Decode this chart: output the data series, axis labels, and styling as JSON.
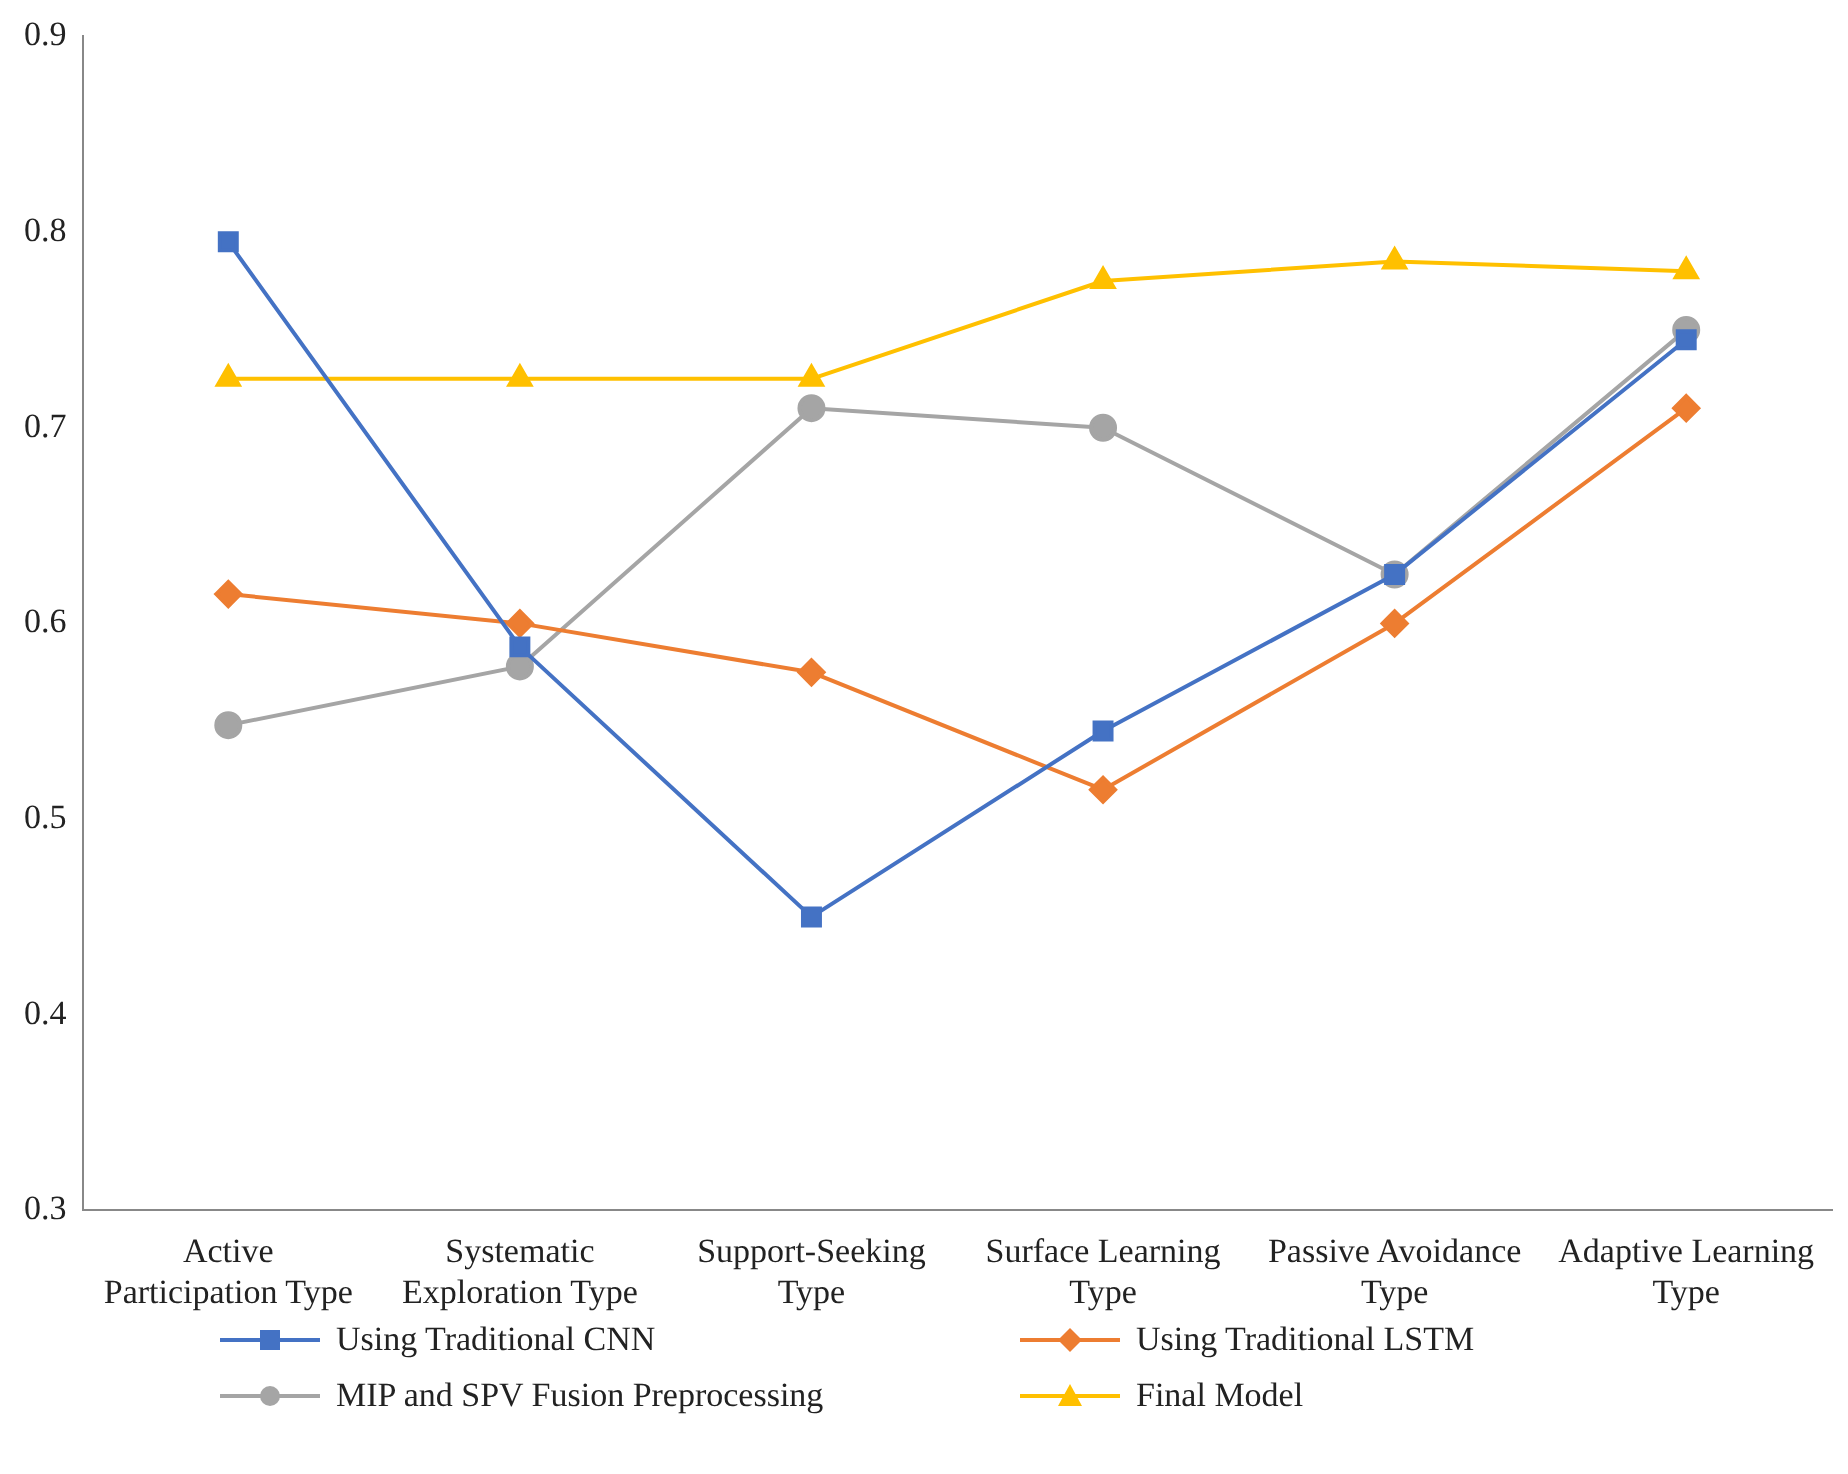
{
  "chart_data": {
    "type": "line",
    "categories": [
      "Active Participation Type",
      "Systematic Exploration Type",
      "Support-Seeking Type",
      "Surface Learning Type",
      "Passive Avoidance Type",
      "Adaptive Learning Type"
    ],
    "series": [
      {
        "name": "Using Traditional CNN",
        "color": "#4472c4",
        "marker": "square",
        "values": [
          0.795,
          0.588,
          0.45,
          0.545,
          0.625,
          0.745
        ]
      },
      {
        "name": "Using Traditional LSTM",
        "color": "#ed7d31",
        "marker": "diamond",
        "values": [
          0.615,
          0.6,
          0.575,
          0.515,
          0.6,
          0.71
        ]
      },
      {
        "name": "MIP and SPV Fusion Preprocessing",
        "color": "#a5a5a5",
        "marker": "circle",
        "values": [
          0.548,
          0.578,
          0.71,
          0.7,
          0.625,
          0.75
        ]
      },
      {
        "name": "Final Model",
        "color": "#ffc000",
        "marker": "triangle",
        "values": [
          0.725,
          0.725,
          0.725,
          0.775,
          0.785,
          0.78
        ]
      }
    ],
    "ylim": [
      0.3,
      0.9
    ],
    "yticks": [
      0.3,
      0.4,
      0.5,
      0.6,
      0.7,
      0.8,
      0.9
    ],
    "grid": false,
    "legend": "bottom",
    "line_style": "solid"
  }
}
